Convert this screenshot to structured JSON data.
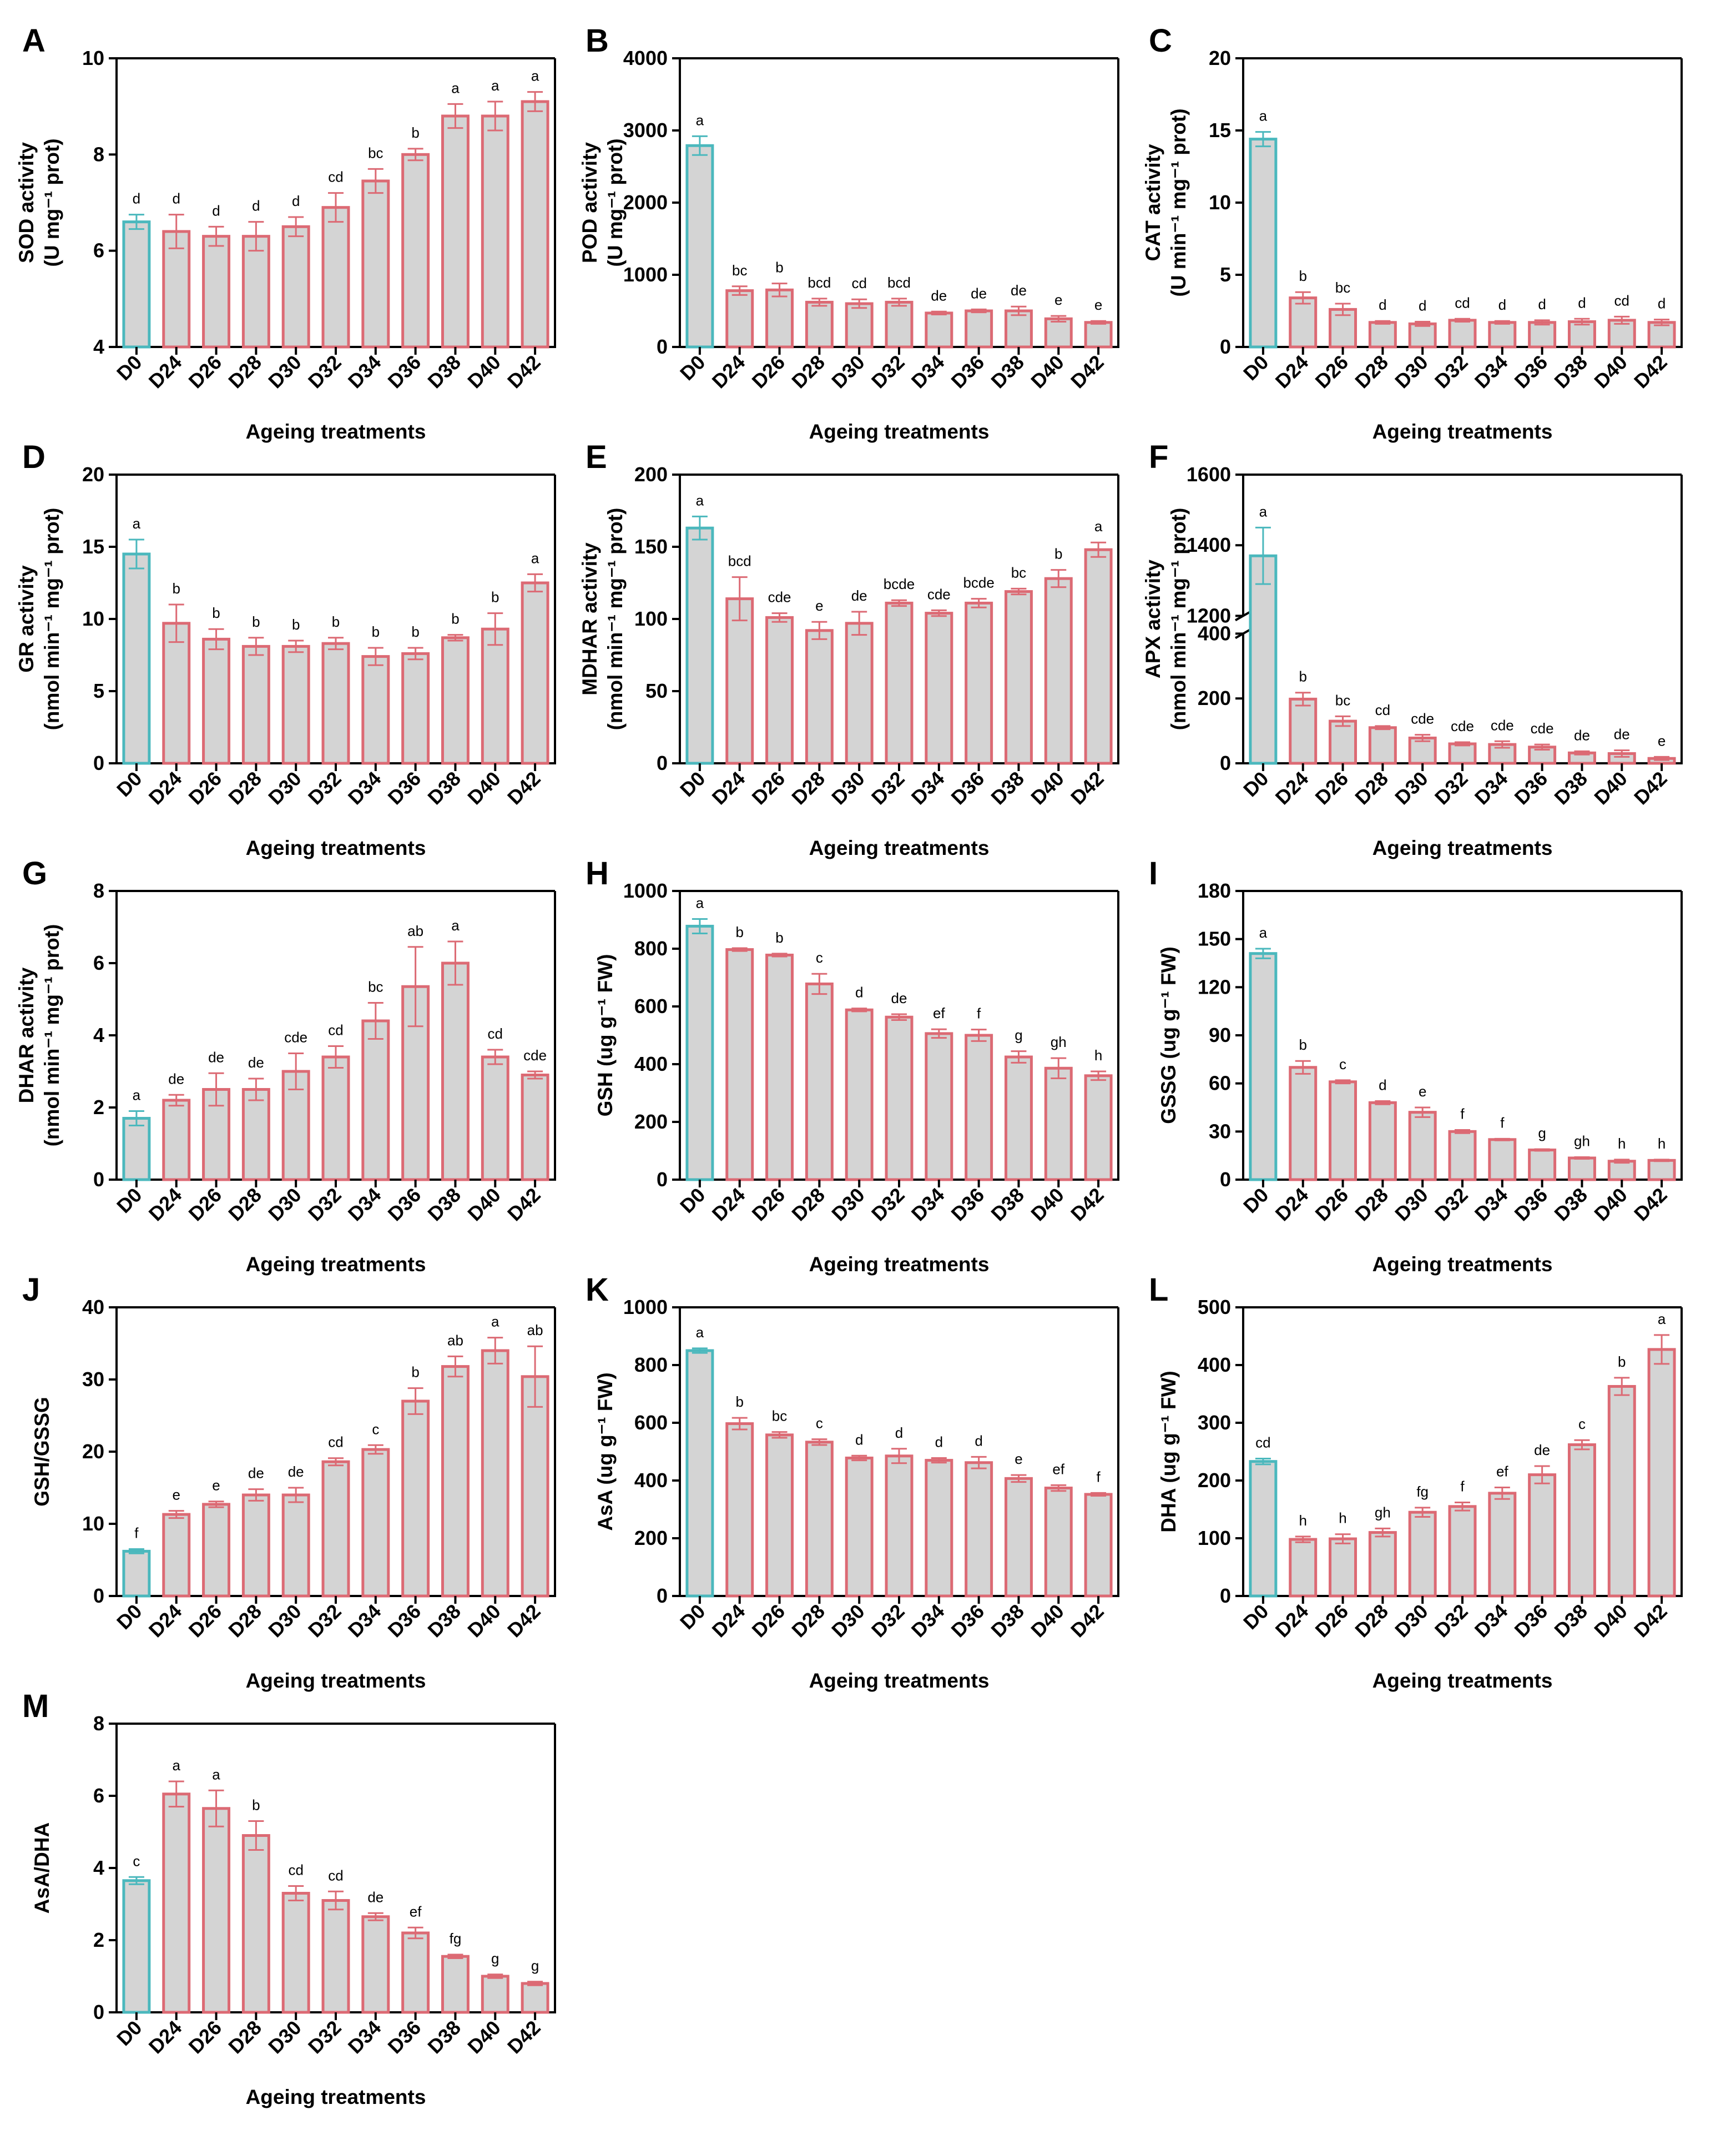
{
  "colors": {
    "bar_fill": "#d4d4d4",
    "control_edge": "#4bb8bd",
    "treat_edge": "#dc6a74",
    "axis": "#000000"
  },
  "chart_data": [
    {
      "letter": "A",
      "type": "bar",
      "categories": [
        "D0",
        "D24",
        "D26",
        "D28",
        "D30",
        "D32",
        "D34",
        "D36",
        "D38",
        "D40",
        "D42"
      ],
      "values": [
        6.6,
        6.4,
        6.3,
        6.3,
        6.5,
        6.9,
        7.45,
        8.0,
        8.8,
        8.8,
        9.1
      ],
      "errors": [
        0.15,
        0.35,
        0.2,
        0.3,
        0.2,
        0.3,
        0.25,
        0.12,
        0.25,
        0.3,
        0.2
      ],
      "labels": [
        "d",
        "d",
        "d",
        "d",
        "d",
        "cd",
        "bc",
        "b",
        "a",
        "a",
        "a"
      ],
      "ylabel": [
        "SOD activity",
        "(U mg⁻¹ prot)"
      ],
      "xlabel": "Ageing treatments",
      "ylim": [
        4,
        10
      ],
      "yticks": [
        4,
        6,
        8,
        10
      ],
      "tick_labels": [
        "4",
        "6",
        "8",
        "10"
      ]
    },
    {
      "letter": "B",
      "type": "bar",
      "categories": [
        "D0",
        "D24",
        "D26",
        "D28",
        "D30",
        "D32",
        "D34",
        "D36",
        "D38",
        "D40",
        "D42"
      ],
      "values": [
        2790,
        780,
        790,
        620,
        600,
        620,
        470,
        500,
        500,
        390,
        340
      ],
      "errors": [
        130,
        60,
        90,
        50,
        60,
        50,
        20,
        20,
        60,
        40,
        20
      ],
      "labels": [
        "a",
        "bc",
        "b",
        "bcd",
        "cd",
        "bcd",
        "de",
        "de",
        "de",
        "e",
        "e"
      ],
      "ylabel": [
        "POD activity",
        "(U mg⁻¹ prot)"
      ],
      "xlabel": "Ageing treatments",
      "ylim": [
        0,
        4000
      ],
      "yticks": [
        0,
        1000,
        2000,
        3000,
        4000
      ],
      "tick_labels": [
        "0",
        "1000",
        "2000",
        "3000",
        "4000"
      ]
    },
    {
      "letter": "C",
      "type": "bar",
      "categories": [
        "D0",
        "D24",
        "D26",
        "D28",
        "D30",
        "D32",
        "D34",
        "D36",
        "D38",
        "D40",
        "D42"
      ],
      "values": [
        14.4,
        3.4,
        2.6,
        1.7,
        1.6,
        1.85,
        1.7,
        1.7,
        1.75,
        1.85,
        1.7
      ],
      "errors": [
        0.5,
        0.4,
        0.4,
        0.1,
        0.15,
        0.1,
        0.1,
        0.15,
        0.2,
        0.25,
        0.2
      ],
      "labels": [
        "a",
        "b",
        "bc",
        "d",
        "d",
        "cd",
        "d",
        "d",
        "d",
        "cd",
        "d"
      ],
      "ylabel": [
        "CAT activity",
        "(U min⁻¹ mg⁻¹ prot)"
      ],
      "xlabel": "Ageing treatments",
      "ylim": [
        0,
        20
      ],
      "yticks": [
        0,
        5,
        10,
        15,
        20
      ],
      "tick_labels": [
        "0",
        "5",
        "10",
        "15",
        "20"
      ]
    },
    {
      "letter": "D",
      "type": "bar",
      "categories": [
        "D0",
        "D24",
        "D26",
        "D28",
        "D30",
        "D32",
        "D34",
        "D36",
        "D38",
        "D40",
        "D42"
      ],
      "values": [
        14.5,
        9.7,
        8.6,
        8.1,
        8.1,
        8.3,
        7.4,
        7.6,
        8.7,
        9.3,
        12.5
      ],
      "errors": [
        1.0,
        1.3,
        0.7,
        0.6,
        0.4,
        0.4,
        0.6,
        0.4,
        0.2,
        1.1,
        0.6
      ],
      "labels": [
        "a",
        "b",
        "b",
        "b",
        "b",
        "b",
        "b",
        "b",
        "b",
        "b",
        "a"
      ],
      "ylabel": [
        "GR activity",
        "(nmol min⁻¹ mg⁻¹ prot)"
      ],
      "xlabel": "Ageing treatments",
      "ylim": [
        0,
        20
      ],
      "yticks": [
        0,
        5,
        10,
        15,
        20
      ],
      "tick_labels": [
        "0",
        "5",
        "10",
        "15",
        "20"
      ]
    },
    {
      "letter": "E",
      "type": "bar",
      "categories": [
        "D0",
        "D24",
        "D26",
        "D28",
        "D30",
        "D32",
        "D34",
        "D36",
        "D38",
        "D40",
        "D42"
      ],
      "values": [
        163,
        114,
        101,
        92,
        97,
        111,
        104,
        111,
        119,
        128,
        148
      ],
      "errors": [
        8,
        15,
        3,
        6,
        8,
        2,
        2,
        3,
        2,
        6,
        5
      ],
      "labels": [
        "a",
        "bcd",
        "cde",
        "e",
        "de",
        "bcde",
        "cde",
        "bcde",
        "bc",
        "b",
        "a"
      ],
      "ylabel": [
        "MDHAR activity",
        "(nmol min⁻¹ mg⁻¹ prot)"
      ],
      "xlabel": "Ageing treatments",
      "ylim": [
        0,
        200
      ],
      "yticks": [
        0,
        50,
        100,
        150,
        200
      ],
      "tick_labels": [
        "0",
        "50",
        "100",
        "150",
        "200"
      ]
    },
    {
      "letter": "F",
      "type": "bar",
      "broken_axis": true,
      "categories": [
        "D0",
        "D24",
        "D26",
        "D28",
        "D30",
        "D32",
        "D34",
        "D36",
        "D38",
        "D40",
        "D42"
      ],
      "values": [
        1370,
        198,
        130,
        110,
        78,
        60,
        58,
        50,
        32,
        30,
        15
      ],
      "errors": [
        80,
        20,
        15,
        5,
        10,
        5,
        10,
        8,
        5,
        10,
        5
      ],
      "labels": [
        "a",
        "b",
        "bc",
        "cd",
        "cde",
        "cde",
        "cde",
        "cde",
        "de",
        "de",
        "e"
      ],
      "ylabel": [
        "APX activity",
        "(nmol min⁻¹ mg⁻¹ prot)"
      ],
      "xlabel": "Ageing treatments",
      "ylim_lower": [
        0,
        400
      ],
      "ylim_upper": [
        1200,
        1600
      ],
      "yticks": [
        0,
        200,
        400,
        1200,
        1400,
        1600
      ],
      "tick_labels": [
        "0",
        "200",
        "400",
        "1200",
        "1400",
        "1600"
      ]
    },
    {
      "letter": "G",
      "type": "bar",
      "categories": [
        "D0",
        "D24",
        "D26",
        "D28",
        "D30",
        "D32",
        "D34",
        "D36",
        "D38",
        "D40",
        "D42"
      ],
      "values": [
        1.7,
        2.2,
        2.5,
        2.5,
        3.0,
        3.4,
        4.4,
        5.35,
        6.0,
        3.4,
        2.9
      ],
      "errors": [
        0.2,
        0.15,
        0.45,
        0.3,
        0.5,
        0.3,
        0.5,
        1.1,
        0.6,
        0.2,
        0.1
      ],
      "labels": [
        "a",
        "de",
        "de",
        "de",
        "cde",
        "cd",
        "bc",
        "ab",
        "a",
        "cd",
        "cde"
      ],
      "ylabel": [
        "DHAR activity",
        "(nmol min⁻¹ mg⁻¹ prot)"
      ],
      "xlabel": "Ageing treatments",
      "ylim": [
        0,
        8
      ],
      "yticks": [
        0,
        2,
        4,
        6,
        8
      ],
      "tick_labels": [
        "0",
        "2",
        "4",
        "6",
        "8"
      ]
    },
    {
      "letter": "H",
      "type": "bar",
      "categories": [
        "D0",
        "D24",
        "D26",
        "D28",
        "D30",
        "D32",
        "D34",
        "D36",
        "D38",
        "D40",
        "D42"
      ],
      "values": [
        878,
        797,
        778,
        678,
        588,
        563,
        506,
        500,
        425,
        386,
        360
      ],
      "errors": [
        25,
        5,
        5,
        35,
        5,
        10,
        15,
        20,
        20,
        35,
        15
      ],
      "labels": [
        "a",
        "b",
        "b",
        "c",
        "d",
        "de",
        "ef",
        "f",
        "g",
        "gh",
        "h"
      ],
      "ylabel": [
        "GSH (ug g⁻¹ FW)"
      ],
      "xlabel": "Ageing treatments",
      "ylim": [
        0,
        1000
      ],
      "yticks": [
        0,
        200,
        400,
        600,
        800,
        1000
      ],
      "tick_labels": [
        "0",
        "200",
        "400",
        "600",
        "800",
        "1000"
      ]
    },
    {
      "letter": "I",
      "type": "bar",
      "categories": [
        "D0",
        "D24",
        "D26",
        "D28",
        "D30",
        "D32",
        "D34",
        "D36",
        "D38",
        "D40",
        "D42"
      ],
      "values": [
        141,
        70,
        61,
        48,
        42,
        30,
        25,
        18.5,
        13.5,
        11.5,
        12
      ],
      "errors": [
        3,
        4,
        1,
        1,
        3,
        1,
        0.5,
        0.5,
        0.5,
        1,
        0.5
      ],
      "labels": [
        "a",
        "b",
        "c",
        "d",
        "e",
        "f",
        "f",
        "g",
        "gh",
        "h",
        "h"
      ],
      "ylabel": [
        "GSSG (ug g⁻¹ FW)"
      ],
      "xlabel": "Ageing treatments",
      "ylim": [
        0,
        180
      ],
      "yticks": [
        0,
        30,
        60,
        90,
        120,
        150,
        180
      ],
      "tick_labels": [
        "0",
        "30",
        "60",
        "90",
        "120",
        "150",
        "180"
      ]
    },
    {
      "letter": "J",
      "type": "bar",
      "categories": [
        "D0",
        "D24",
        "D26",
        "D28",
        "D30",
        "D32",
        "D34",
        "D36",
        "D38",
        "D40",
        "D42"
      ],
      "values": [
        6.2,
        11.3,
        12.7,
        14.0,
        14.0,
        18.6,
        20.3,
        27.0,
        31.8,
        34.0,
        30.4
      ],
      "errors": [
        0.3,
        0.5,
        0.4,
        0.8,
        1.0,
        0.5,
        0.6,
        1.8,
        1.4,
        1.8,
        4.2
      ],
      "labels": [
        "f",
        "e",
        "e",
        "de",
        "de",
        "cd",
        "c",
        "b",
        "ab",
        "a",
        "ab"
      ],
      "ylabel": [
        "GSH/GSSG"
      ],
      "xlabel": "Ageing treatments",
      "ylim": [
        0,
        40
      ],
      "yticks": [
        0,
        10,
        20,
        30,
        40
      ],
      "tick_labels": [
        "0",
        "10",
        "20",
        "30",
        "40"
      ]
    },
    {
      "letter": "K",
      "type": "bar",
      "categories": [
        "D0",
        "D24",
        "D26",
        "D28",
        "D30",
        "D32",
        "D34",
        "D36",
        "D38",
        "D40",
        "D42"
      ],
      "values": [
        850,
        597,
        558,
        533,
        478,
        485,
        470,
        462,
        407,
        374,
        352
      ],
      "errors": [
        8,
        20,
        10,
        10,
        8,
        25,
        8,
        20,
        12,
        10,
        5
      ],
      "labels": [
        "a",
        "b",
        "bc",
        "c",
        "d",
        "d",
        "d",
        "d",
        "e",
        "ef",
        "f"
      ],
      "ylabel": [
        "AsA (ug g⁻¹ FW)"
      ],
      "xlabel": "Ageing treatments",
      "ylim": [
        0,
        1000
      ],
      "yticks": [
        0,
        200,
        400,
        600,
        800,
        1000
      ],
      "tick_labels": [
        "0",
        "200",
        "400",
        "600",
        "800",
        "1000"
      ]
    },
    {
      "letter": "L",
      "type": "bar",
      "categories": [
        "D0",
        "D24",
        "D26",
        "D28",
        "D30",
        "D32",
        "D34",
        "D36",
        "D38",
        "D40",
        "D42"
      ],
      "values": [
        233,
        98,
        99,
        110,
        145,
        155,
        178,
        210,
        262,
        363,
        427
      ],
      "errors": [
        5,
        5,
        8,
        7,
        8,
        7,
        10,
        15,
        8,
        15,
        25
      ],
      "labels": [
        "cd",
        "h",
        "h",
        "gh",
        "fg",
        "f",
        "ef",
        "de",
        "c",
        "b",
        "a"
      ],
      "ylabel": [
        "DHA (ug g⁻¹ FW)"
      ],
      "xlabel": "Ageing treatments",
      "ylim": [
        0,
        500
      ],
      "yticks": [
        0,
        100,
        200,
        300,
        400,
        500
      ],
      "tick_labels": [
        "0",
        "100",
        "200",
        "300",
        "400",
        "500"
      ]
    },
    {
      "letter": "M",
      "type": "bar",
      "categories": [
        "D0",
        "D24",
        "D26",
        "D28",
        "D30",
        "D32",
        "D34",
        "D36",
        "D38",
        "D40",
        "D42"
      ],
      "values": [
        3.65,
        6.05,
        5.65,
        4.9,
        3.3,
        3.1,
        2.65,
        2.2,
        1.55,
        1.0,
        0.8
      ],
      "errors": [
        0.1,
        0.35,
        0.5,
        0.4,
        0.2,
        0.25,
        0.1,
        0.15,
        0.05,
        0.05,
        0.05
      ],
      "labels": [
        "c",
        "a",
        "a",
        "b",
        "cd",
        "cd",
        "de",
        "ef",
        "fg",
        "g",
        "g"
      ],
      "ylabel": [
        "AsA/DHA"
      ],
      "xlabel": "Ageing treatments",
      "ylim": [
        0,
        8
      ],
      "yticks": [
        0,
        2,
        4,
        6,
        8
      ],
      "tick_labels": [
        "0",
        "2",
        "4",
        "6",
        "8"
      ]
    }
  ]
}
